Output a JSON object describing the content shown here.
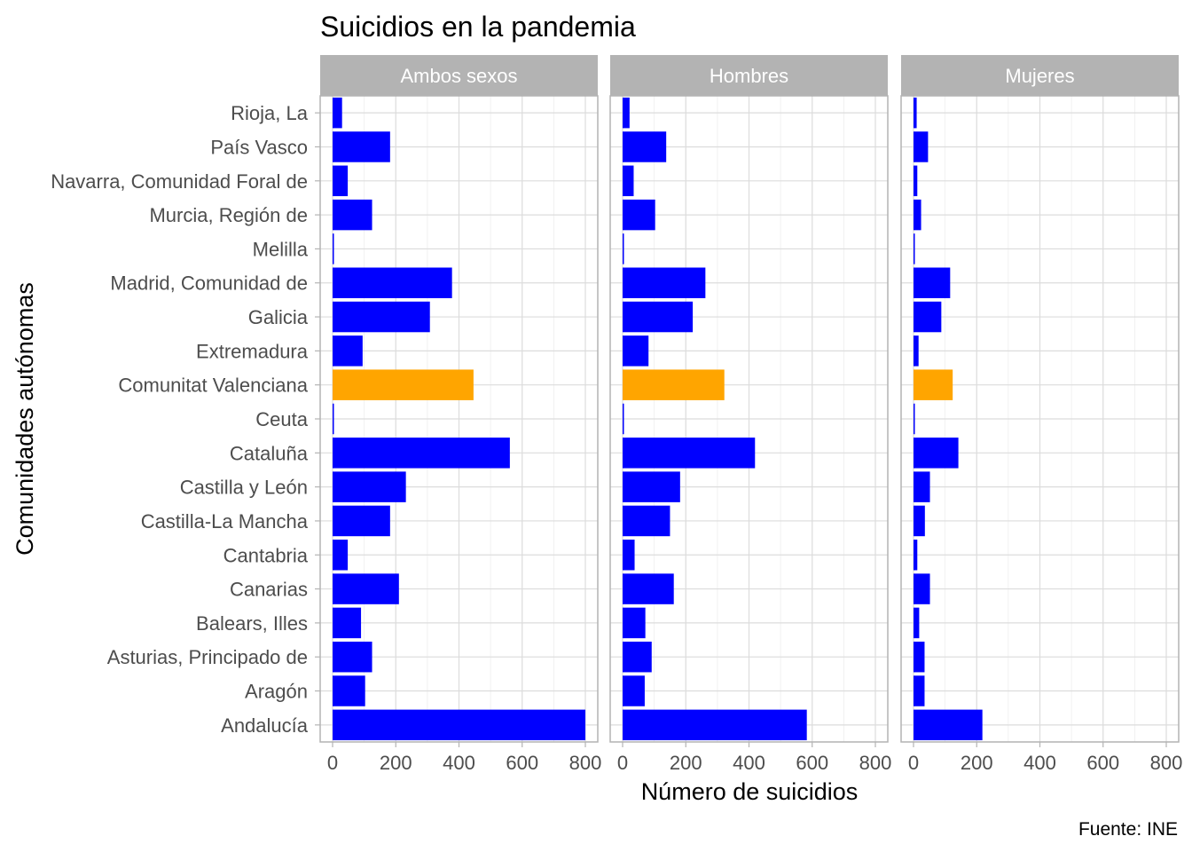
{
  "chart_data": {
    "type": "bar",
    "orientation": "horizontal",
    "title": "Suicidios en la pandemia",
    "xlabel": "Número de suicidios",
    "ylabel": "Comunidades autónomas",
    "caption": "Fuente: INE",
    "xlim": [
      0,
      800
    ],
    "xticks": [
      0,
      200,
      400,
      600,
      800
    ],
    "grid": true,
    "legend": "none",
    "colors": {
      "default": "#0000ff",
      "highlight": "#ffa500"
    },
    "highlight_category": "Comunitat Valenciana",
    "categories": [
      "Rioja, La",
      "País Vasco",
      "Navarra, Comunidad Foral de",
      "Murcia, Región de",
      "Melilla",
      "Madrid, Comunidad de",
      "Galicia",
      "Extremadura",
      "Comunitat Valenciana",
      "Ceuta",
      "Cataluña",
      "Castilla y León",
      "Castilla-La Mancha",
      "Cantabria",
      "Canarias",
      "Balears, Illes",
      "Asturias, Principado de",
      "Aragón",
      "Andalucía"
    ],
    "panels": [
      {
        "name": "Ambos sexos",
        "values": [
          30,
          182,
          48,
          125,
          3,
          378,
          308,
          95,
          446,
          3,
          561,
          232,
          182,
          48,
          210,
          90,
          125,
          103,
          800
        ]
      },
      {
        "name": "Hombres",
        "values": [
          22,
          138,
          35,
          103,
          3,
          262,
          222,
          82,
          322,
          3,
          419,
          182,
          150,
          38,
          162,
          72,
          92,
          70,
          583
        ]
      },
      {
        "name": "Mujeres",
        "values": [
          10,
          46,
          12,
          24,
          1,
          116,
          88,
          16,
          124,
          1,
          142,
          52,
          36,
          12,
          52,
          18,
          35,
          35,
          218
        ]
      }
    ]
  }
}
